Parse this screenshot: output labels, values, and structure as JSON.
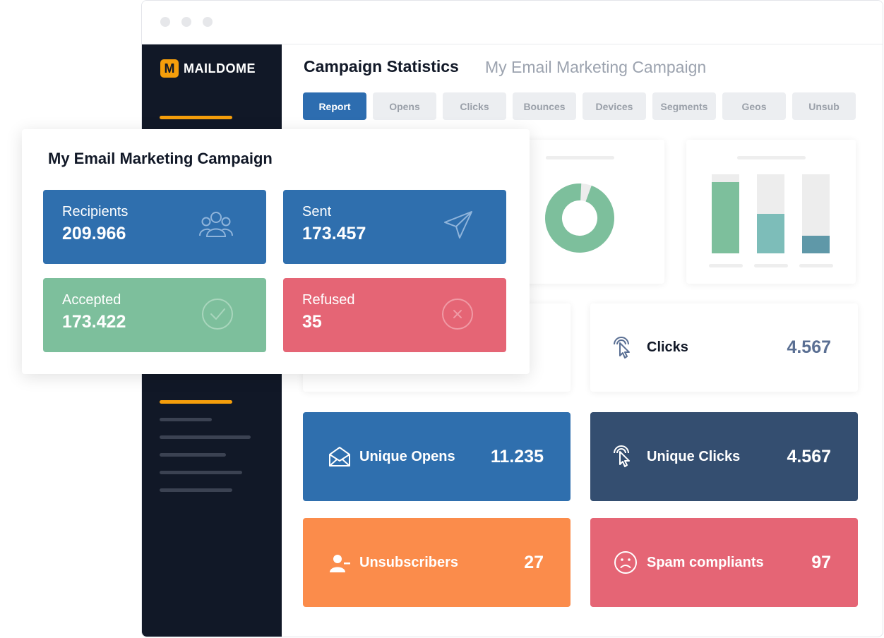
{
  "app": {
    "brand": "MAILDOME",
    "brand_mark": "M"
  },
  "header": {
    "title": "Campaign Statistics",
    "subtitle": "My Email Marketing Campaign"
  },
  "tabs": [
    "Report",
    "Opens",
    "Clicks",
    "Bounces",
    "Devices",
    "Segments",
    "Geos",
    "Unsub"
  ],
  "charts": {
    "donut": {
      "filled_fraction": 0.95,
      "color": "#7dbf9c"
    },
    "bars": [
      {
        "fill_fraction": 0.9,
        "color": "#7dbf9c"
      },
      {
        "fill_fraction": 0.5,
        "color": "#7dbdb9"
      },
      {
        "fill_fraction": 0.22,
        "color": "#5f98a8"
      }
    ]
  },
  "clicks_card": {
    "label": "Clicks",
    "value": "4.567"
  },
  "stats": {
    "unique_opens": {
      "label": "Unique Opens",
      "value": "11.235",
      "color": "#2f6fae",
      "icon": "envelope-open-icon"
    },
    "unique_clicks": {
      "label": "Unique Clicks",
      "value": "4.567",
      "color": "#344e70",
      "icon": "pointer-click-icon"
    },
    "unsubscribers": {
      "label": "Unsubscribers",
      "value": "27",
      "color": "#fb8c4b",
      "icon": "user-minus-icon"
    },
    "spam": {
      "label": "Spam compliants",
      "value": "97",
      "color": "#e56575",
      "icon": "sad-face-icon"
    }
  },
  "overlay": {
    "title": "My Email Marketing Campaign",
    "recipients": {
      "label": "Recipients",
      "value": "209.966",
      "color": "#2f6fae",
      "icon": "users-icon"
    },
    "sent": {
      "label": "Sent",
      "value": "173.457",
      "color": "#2f6fae",
      "icon": "paper-plane-icon"
    },
    "accepted": {
      "label": "Accepted",
      "value": "173.422",
      "color": "#7dbf9c",
      "icon": "check-circle-icon"
    },
    "refused": {
      "label": "Refused",
      "value": "35",
      "color": "#e56575",
      "icon": "x-circle-icon"
    }
  }
}
